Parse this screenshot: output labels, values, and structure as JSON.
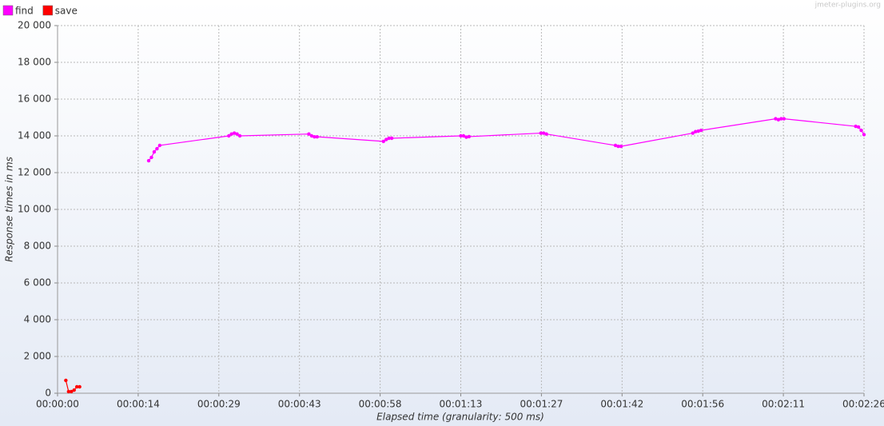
{
  "chart_data": {
    "type": "line",
    "watermark": "jmeter-plugins.org",
    "xlabel": "Elapsed time (granularity: 500 ms)",
    "ylabel": "Response times in ms",
    "xlim": [
      0,
      146
    ],
    "ylim": [
      0,
      20000
    ],
    "xticks": [
      {
        "value": 0,
        "label": "00:00:00"
      },
      {
        "value": 14.6,
        "label": "00:00:14"
      },
      {
        "value": 29.2,
        "label": "00:00:29"
      },
      {
        "value": 43.8,
        "label": "00:00:43"
      },
      {
        "value": 58.4,
        "label": "00:00:58"
      },
      {
        "value": 73,
        "label": "00:01:13"
      },
      {
        "value": 87.6,
        "label": "00:01:27"
      },
      {
        "value": 102.2,
        "label": "00:01:42"
      },
      {
        "value": 116.8,
        "label": "00:01:56"
      },
      {
        "value": 131.4,
        "label": "00:02:11"
      },
      {
        "value": 146,
        "label": "00:02:26"
      }
    ],
    "yticks": [
      0,
      {
        "value": 2000,
        "label": "2 000"
      },
      {
        "value": 4000,
        "label": "4 000"
      },
      {
        "value": 6000,
        "label": "6 000"
      },
      {
        "value": 8000,
        "label": "8 000"
      },
      {
        "value": 10000,
        "label": "10 000"
      },
      {
        "value": 12000,
        "label": "12 000"
      },
      {
        "value": 14000,
        "label": "14 000"
      },
      {
        "value": 16000,
        "label": "16 000"
      },
      {
        "value": 18000,
        "label": "18 000"
      },
      {
        "value": 20000,
        "label": "20 000"
      }
    ],
    "grid": true,
    "series": [
      {
        "name": "find",
        "color": "#ff00ff",
        "x": [
          16.5,
          17,
          17.5,
          18,
          18.5,
          31,
          31.5,
          32,
          32.5,
          33,
          45.5,
          46,
          46.5,
          47,
          59,
          59.5,
          60,
          60.5,
          73,
          73.5,
          74,
          74.5,
          87.5,
          88,
          88.5,
          101,
          101.5,
          102,
          115,
          115.5,
          116,
          116.5,
          130,
          130.5,
          131,
          131.5,
          144.5,
          145,
          145.5,
          146
        ],
        "values": [
          12650,
          12830,
          13130,
          13300,
          13480,
          14000,
          14100,
          14150,
          14100,
          14000,
          14100,
          14000,
          13950,
          13950,
          13700,
          13800,
          13870,
          13870,
          14000,
          14000,
          13930,
          13960,
          14150,
          14150,
          14100,
          13480,
          13430,
          13430,
          14150,
          14230,
          14260,
          14300,
          14930,
          14880,
          14930,
          14930,
          14520,
          14480,
          14300,
          14070
        ]
      },
      {
        "name": "save",
        "color": "#ff0000",
        "x": [
          1.5,
          2,
          2.5,
          3,
          3.5,
          4
        ],
        "values": [
          700,
          90,
          90,
          170,
          350,
          350
        ]
      }
    ]
  }
}
